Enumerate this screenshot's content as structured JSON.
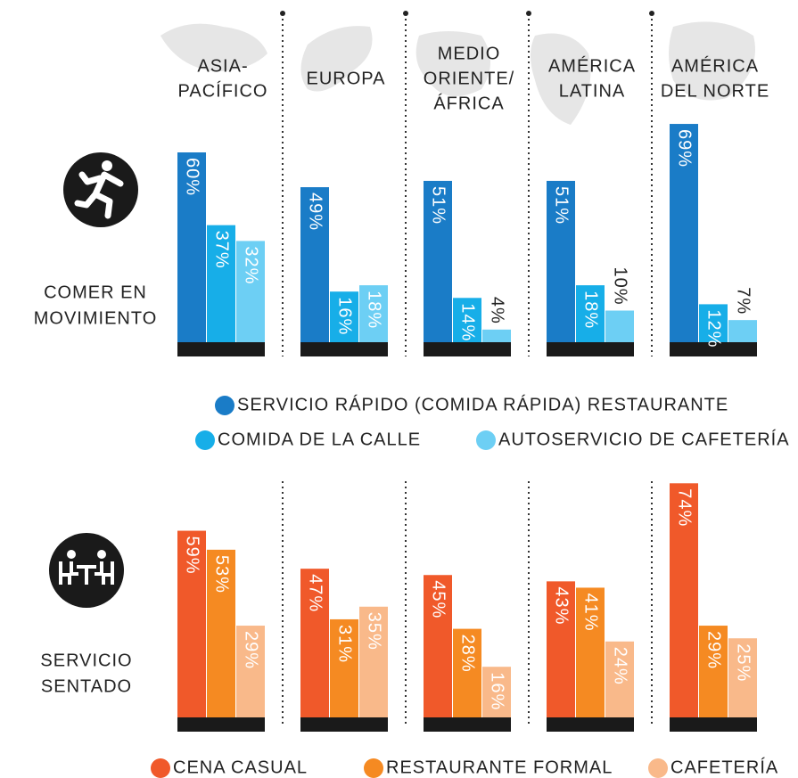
{
  "chart_data": [
    {
      "type": "bar",
      "title": [
        "COMER EN",
        "MOVIMIENTO"
      ],
      "categories": [
        [
          "ASIA-",
          "PACÍFICO"
        ],
        [
          "EUROPA"
        ],
        [
          "MEDIO",
          "ORIENTE/",
          "ÁFRICA"
        ],
        [
          "AMÉRICA",
          "LATINA"
        ],
        [
          "AMÉRICA",
          "DEL NORTE"
        ]
      ],
      "series": [
        {
          "name": "SERVICIO RÁPIDO (COMIDA RÁPIDA) RESTAURANTE",
          "color": "#1a7cc7",
          "values": [
            60,
            49,
            51,
            51,
            69
          ],
          "value_labels": [
            "60%",
            "49%",
            "51%",
            "51%",
            "69%"
          ]
        },
        {
          "name": "COMIDA DE LA CALLE",
          "color": "#17aee8",
          "values": [
            37,
            16,
            14,
            18,
            12
          ],
          "value_labels": [
            "37%",
            "16%",
            "14%",
            "18%",
            "12%"
          ]
        },
        {
          "name": "AUTOSERVICIO DE CAFETERÍA",
          "color": "#6dcff4",
          "values": [
            32,
            18,
            4,
            10,
            7
          ],
          "value_labels": [
            "32%",
            "18%",
            "4%",
            "10%",
            "7%"
          ]
        }
      ]
    },
    {
      "type": "bar",
      "title": [
        "SERVICIO",
        "SENTADO"
      ],
      "categories": [
        null,
        null,
        null,
        null,
        null
      ],
      "series": [
        {
          "name": "CENA CASUAL",
          "color": "#f0592a",
          "values": [
            59,
            47,
            45,
            43,
            74
          ],
          "value_labels": [
            "59%",
            "47%",
            "45%",
            "43%",
            "74%"
          ]
        },
        {
          "name": "RESTAURANTE FORMAL",
          "color": "#f58a22",
          "values": [
            53,
            31,
            28,
            41,
            29
          ],
          "value_labels": [
            "53%",
            "31%",
            "28%",
            "41%",
            "29%"
          ]
        },
        {
          "name": "CAFETERÍA",
          "color": "#f9b98a",
          "values": [
            29,
            35,
            16,
            24,
            25
          ],
          "value_labels": [
            "29%",
            "35%",
            "16%",
            "24%",
            "25%"
          ]
        }
      ]
    }
  ]
}
